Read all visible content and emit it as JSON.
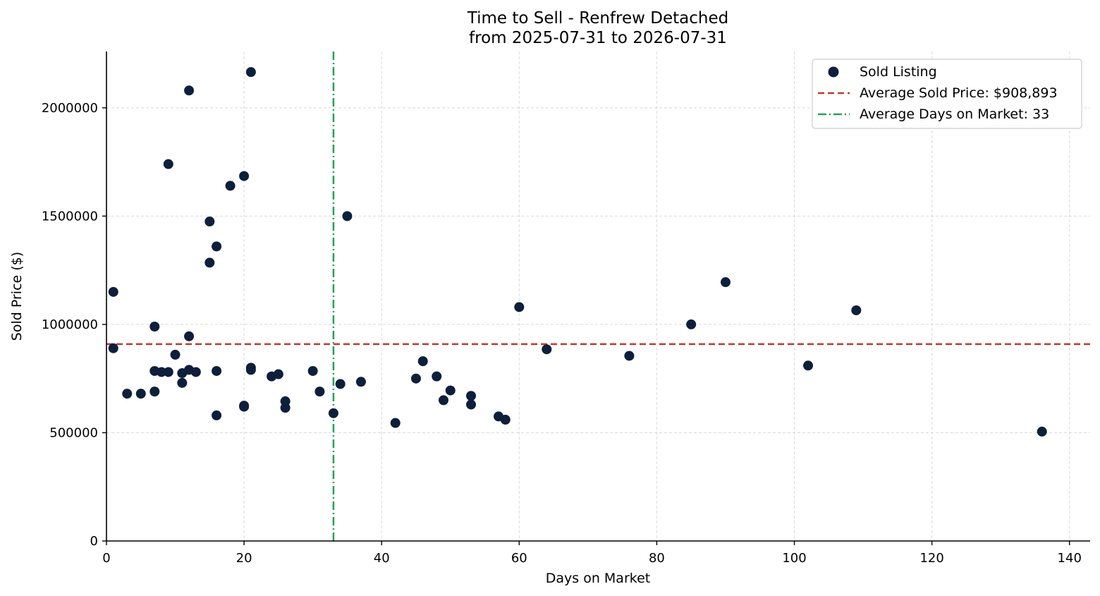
{
  "chart_data": {
    "type": "scatter",
    "title_line1": "Time to Sell - Renfrew Detached",
    "title_line2": "from 2025-07-31 to 2026-07-31",
    "xlabel": "Days on Market",
    "ylabel": "Sold Price ($)",
    "xlim": [
      0,
      143
    ],
    "ylim": [
      0,
      2260000
    ],
    "xticks": [
      0,
      20,
      40,
      60,
      80,
      100,
      120,
      140
    ],
    "yticks": [
      0,
      500000,
      1000000,
      1500000,
      2000000
    ],
    "xtick_labels": [
      "0",
      "20",
      "40",
      "60",
      "80",
      "100",
      "120",
      "140"
    ],
    "ytick_labels": [
      "0",
      "500000",
      "1000000",
      "1500000",
      "2000000"
    ],
    "grid": true,
    "legend_position": "top-right",
    "series": [
      {
        "name": "Sold Listing",
        "color": "#0d1f3a",
        "points": [
          [
            1,
            1150000
          ],
          [
            1,
            890000
          ],
          [
            3,
            680000
          ],
          [
            5,
            680000
          ],
          [
            7,
            990000
          ],
          [
            7,
            785000
          ],
          [
            7,
            690000
          ],
          [
            8,
            780000
          ],
          [
            9,
            1740000
          ],
          [
            9,
            780000
          ],
          [
            10,
            860000
          ],
          [
            11,
            775000
          ],
          [
            11,
            730000
          ],
          [
            12,
            2080000
          ],
          [
            12,
            945000
          ],
          [
            12,
            790000
          ],
          [
            13,
            780000
          ],
          [
            15,
            1475000
          ],
          [
            15,
            1285000
          ],
          [
            16,
            1360000
          ],
          [
            16,
            785000
          ],
          [
            16,
            580000
          ],
          [
            18,
            1640000
          ],
          [
            20,
            1685000
          ],
          [
            20,
            625000
          ],
          [
            20,
            620000
          ],
          [
            21,
            2165000
          ],
          [
            21,
            800000
          ],
          [
            21,
            790000
          ],
          [
            24,
            760000
          ],
          [
            25,
            770000
          ],
          [
            26,
            645000
          ],
          [
            26,
            615000
          ],
          [
            30,
            785000
          ],
          [
            31,
            690000
          ],
          [
            33,
            590000
          ],
          [
            34,
            725000
          ],
          [
            35,
            1500000
          ],
          [
            37,
            735000
          ],
          [
            42,
            545000
          ],
          [
            45,
            750000
          ],
          [
            46,
            830000
          ],
          [
            48,
            760000
          ],
          [
            49,
            650000
          ],
          [
            50,
            695000
          ],
          [
            53,
            670000
          ],
          [
            53,
            630000
          ],
          [
            57,
            575000
          ],
          [
            58,
            560000
          ],
          [
            60,
            1080000
          ],
          [
            64,
            885000
          ],
          [
            76,
            855000
          ],
          [
            85,
            1000000
          ],
          [
            90,
            1195000
          ],
          [
            102,
            810000
          ],
          [
            109,
            1065000
          ],
          [
            136,
            505000
          ]
        ]
      }
    ],
    "reference_lines": [
      {
        "orientation": "horizontal",
        "value": 908893,
        "label": "Average Sold Price: $908,893",
        "color": "#c0392b",
        "style": "dashed"
      },
      {
        "orientation": "vertical",
        "value": 33,
        "label": "Average Days on Market: 33",
        "color": "#27a05a",
        "style": "dashdot"
      }
    ]
  }
}
